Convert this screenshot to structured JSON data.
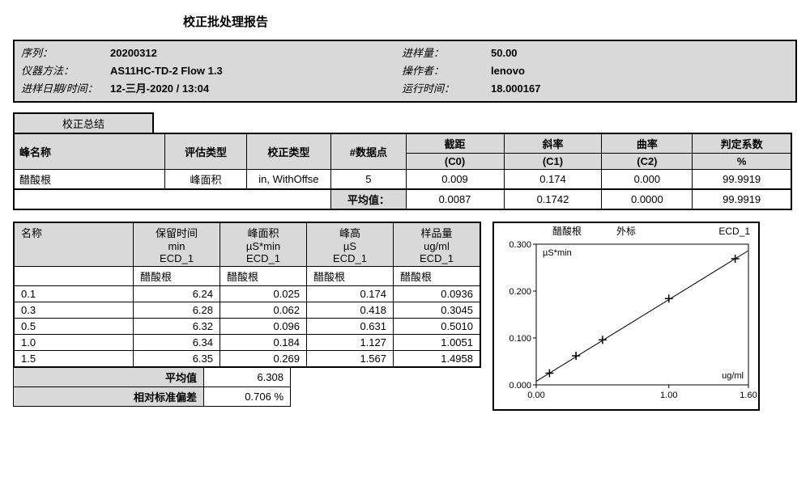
{
  "title": "校正批处理报告",
  "info": {
    "seq_label": "序列：",
    "seq": "20200312",
    "inj_label": "进样量：",
    "inj": "50.00",
    "method_label": "仪器方法：",
    "method": "AS11HC-TD-2 Flow 1.3",
    "op_label": "操作者：",
    "op": "lenovo",
    "datetime_label": "进样日期/时间：",
    "datetime": "12-三月-2020 / 13:04",
    "runtime_label": "运行时间：",
    "runtime": "18.000167"
  },
  "summary": {
    "badge": "校正总结",
    "headers": {
      "name": "峰名称",
      "eval": "评估类型",
      "cal": "校正类型",
      "points": "#数据点",
      "c0": "截距",
      "c0sub": "(C0)",
      "c1": "斜率",
      "c1sub": "(C1)",
      "c2": "曲率",
      "c2sub": "(C2)",
      "r2": "判定系数",
      "r2sub": "%"
    },
    "row": {
      "name": "醋酸根",
      "eval": "峰面积",
      "cal": "in, WithOffse",
      "points": "5",
      "c0": "0.009",
      "c1": "0.174",
      "c2": "0.000",
      "r2": "99.9919"
    },
    "avg_label": "平均值：",
    "avg": {
      "c0": "0.0087",
      "c1": "0.1742",
      "c2": "0.0000",
      "r2": "99.9919"
    }
  },
  "data_table": {
    "headers": {
      "name": "名称",
      "rt": "保留时间",
      "rt_u": "min",
      "rt_d": "ECD_1",
      "area": "峰面积",
      "area_u": "µS*min",
      "area_d": "ECD_1",
      "height": "峰高",
      "height_u": "µS",
      "height_d": "ECD_1",
      "amount": "样品量",
      "amount_u": "ug/ml",
      "amount_d": "ECD_1"
    },
    "compound": "醋酸根",
    "rows": [
      {
        "n": "0.1",
        "rt": "6.24",
        "area": "0.025",
        "h": "0.174",
        "a": "0.0936"
      },
      {
        "n": "0.3",
        "rt": "6.28",
        "area": "0.062",
        "h": "0.418",
        "a": "0.3045"
      },
      {
        "n": "0.5",
        "rt": "6.32",
        "area": "0.096",
        "h": "0.631",
        "a": "0.5010"
      },
      {
        "n": "1.0",
        "rt": "6.34",
        "area": "0.184",
        "h": "1.127",
        "a": "1.0051"
      },
      {
        "n": "1.5",
        "rt": "6.35",
        "area": "0.269",
        "h": "1.567",
        "a": "1.4958"
      }
    ],
    "avg_label": "平均值",
    "avg_rt": "6.308",
    "rsd_label": "相对标准偏差",
    "rsd": "0.706 %"
  },
  "chart": {
    "title_left": "醋酸根",
    "title_mid": "外标",
    "title_right": "ECD_1",
    "y_label": "µS*min",
    "x_label": "ug/ml",
    "x_ticks": [
      "0.00",
      "1.00",
      "1.60"
    ],
    "y_ticks": [
      "0.000",
      "0.100",
      "0.200",
      "0.300"
    ],
    "xlim": [
      0,
      1.6
    ],
    "ylim": [
      0,
      0.3
    ],
    "points": [
      {
        "x": 0.1,
        "y": 0.025
      },
      {
        "x": 0.3,
        "y": 0.062
      },
      {
        "x": 0.5,
        "y": 0.096
      },
      {
        "x": 1.0,
        "y": 0.184
      },
      {
        "x": 1.5,
        "y": 0.269
      }
    ],
    "line_color": "#000000",
    "marker": "plus",
    "marker_size": 10,
    "background_color": "#ffffff",
    "border_color": "#000000",
    "tick_fontsize": 11
  }
}
